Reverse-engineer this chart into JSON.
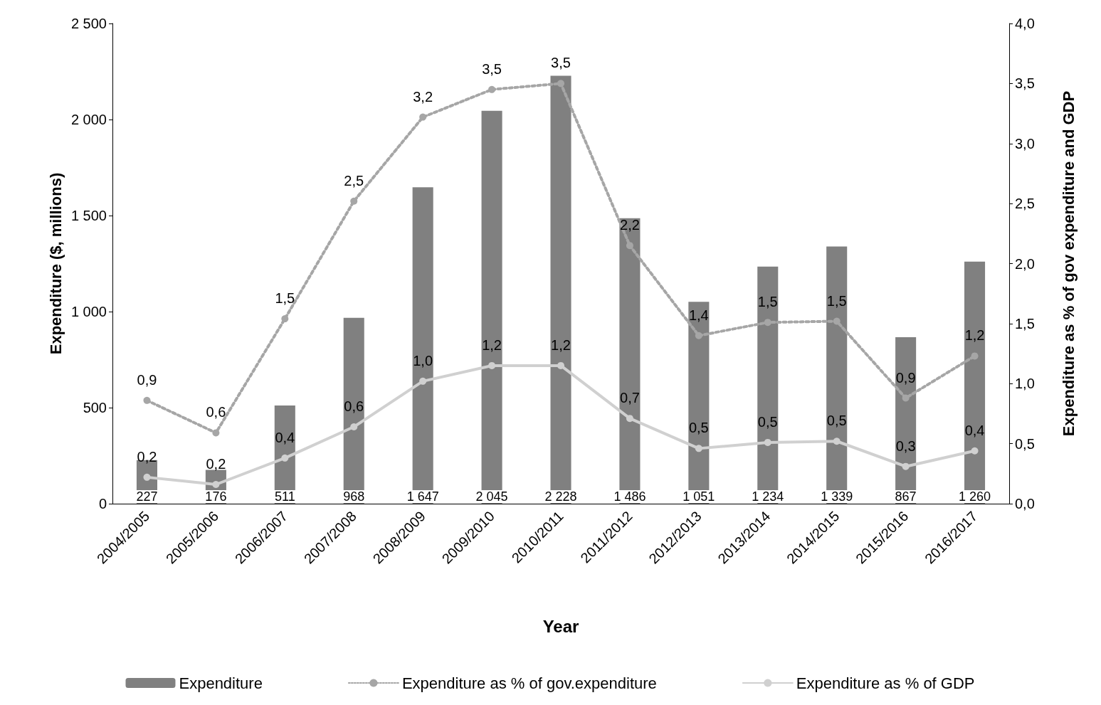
{
  "chart_data": {
    "type": "bar",
    "xlabel": "Year",
    "ylabel": "Expenditure ($, millions)",
    "y2label": "Expenditure as % of gov expenditure and GDP",
    "categories": [
      "2004/2005",
      "2005/2006",
      "2006/2007",
      "2007/2008",
      "2008/2009",
      "2009/2010",
      "2010/2011",
      "2011/2012",
      "2012/2013",
      "2013/2014",
      "2014/2015",
      "2015/2016",
      "2016/2017"
    ],
    "series": [
      {
        "name": "Expenditure",
        "color": "#808080",
        "values": [
          227,
          176,
          511,
          968,
          1647,
          2045,
          2228,
          1486,
          1051,
          1234,
          1339,
          867,
          1260
        ],
        "value_labels": [
          "227",
          "176",
          "511",
          "968",
          "1 647",
          "2 045",
          "2 228",
          "1 486",
          "1 051",
          "1 234",
          "1 339",
          "867",
          "1 260"
        ]
      },
      {
        "name": "Expenditure as % of gov.expenditure",
        "type": "line",
        "axis": "y2",
        "color": "#a6a6a6",
        "line_style": "dotted",
        "marker": "circle",
        "values": [
          0.86,
          0.59,
          1.54,
          2.52,
          3.22,
          3.45,
          3.5,
          2.15,
          1.4,
          1.51,
          1.52,
          0.88,
          1.23
        ],
        "value_labels": [
          "0,9",
          "0,6",
          "1,5",
          "2,5",
          "3,2",
          "3,5",
          "3,5",
          "2,2",
          "1,4",
          "1,5",
          "1,5",
          "0,9",
          "1,2"
        ]
      },
      {
        "name": "Expenditure as % of GDP",
        "type": "line",
        "axis": "y2",
        "color": "#d0d0d0",
        "line_style": "solid",
        "marker": "circle",
        "values": [
          0.22,
          0.16,
          0.38,
          0.64,
          1.02,
          1.15,
          1.15,
          0.71,
          0.46,
          0.51,
          0.52,
          0.31,
          0.44
        ],
        "value_labels": [
          "0,2",
          "0,2",
          "0,4",
          "0,6",
          "1,0",
          "1,2",
          "1,2",
          "0,7",
          "0,5",
          "0,5",
          "0,5",
          "0,3",
          "0,4"
        ]
      }
    ],
    "ylim": [
      0,
      2500
    ],
    "yticks": [
      0,
      500,
      {
        "value": 1000,
        "label": "1 000"
      },
      {
        "value": 1500,
        "label": "1 500"
      },
      {
        "value": 2000,
        "label": "2 000"
      },
      {
        "value": 2500,
        "label": "2 500"
      }
    ],
    "y2lim": [
      0,
      4
    ],
    "y2ticks": [
      {
        "value": 0,
        "label": "0,0"
      },
      {
        "value": 0.5,
        "label": "0,5"
      },
      {
        "value": 1,
        "label": "1,0"
      },
      {
        "value": 1.5,
        "label": "1,5"
      },
      {
        "value": 2,
        "label": "2,0"
      },
      {
        "value": 2.5,
        "label": "2,5"
      },
      {
        "value": 3,
        "label": "3,0"
      },
      {
        "value": 3.5,
        "label": "3,5"
      },
      {
        "value": 4,
        "label": "4,0"
      }
    ],
    "grid": false,
    "legend": "bottom"
  }
}
